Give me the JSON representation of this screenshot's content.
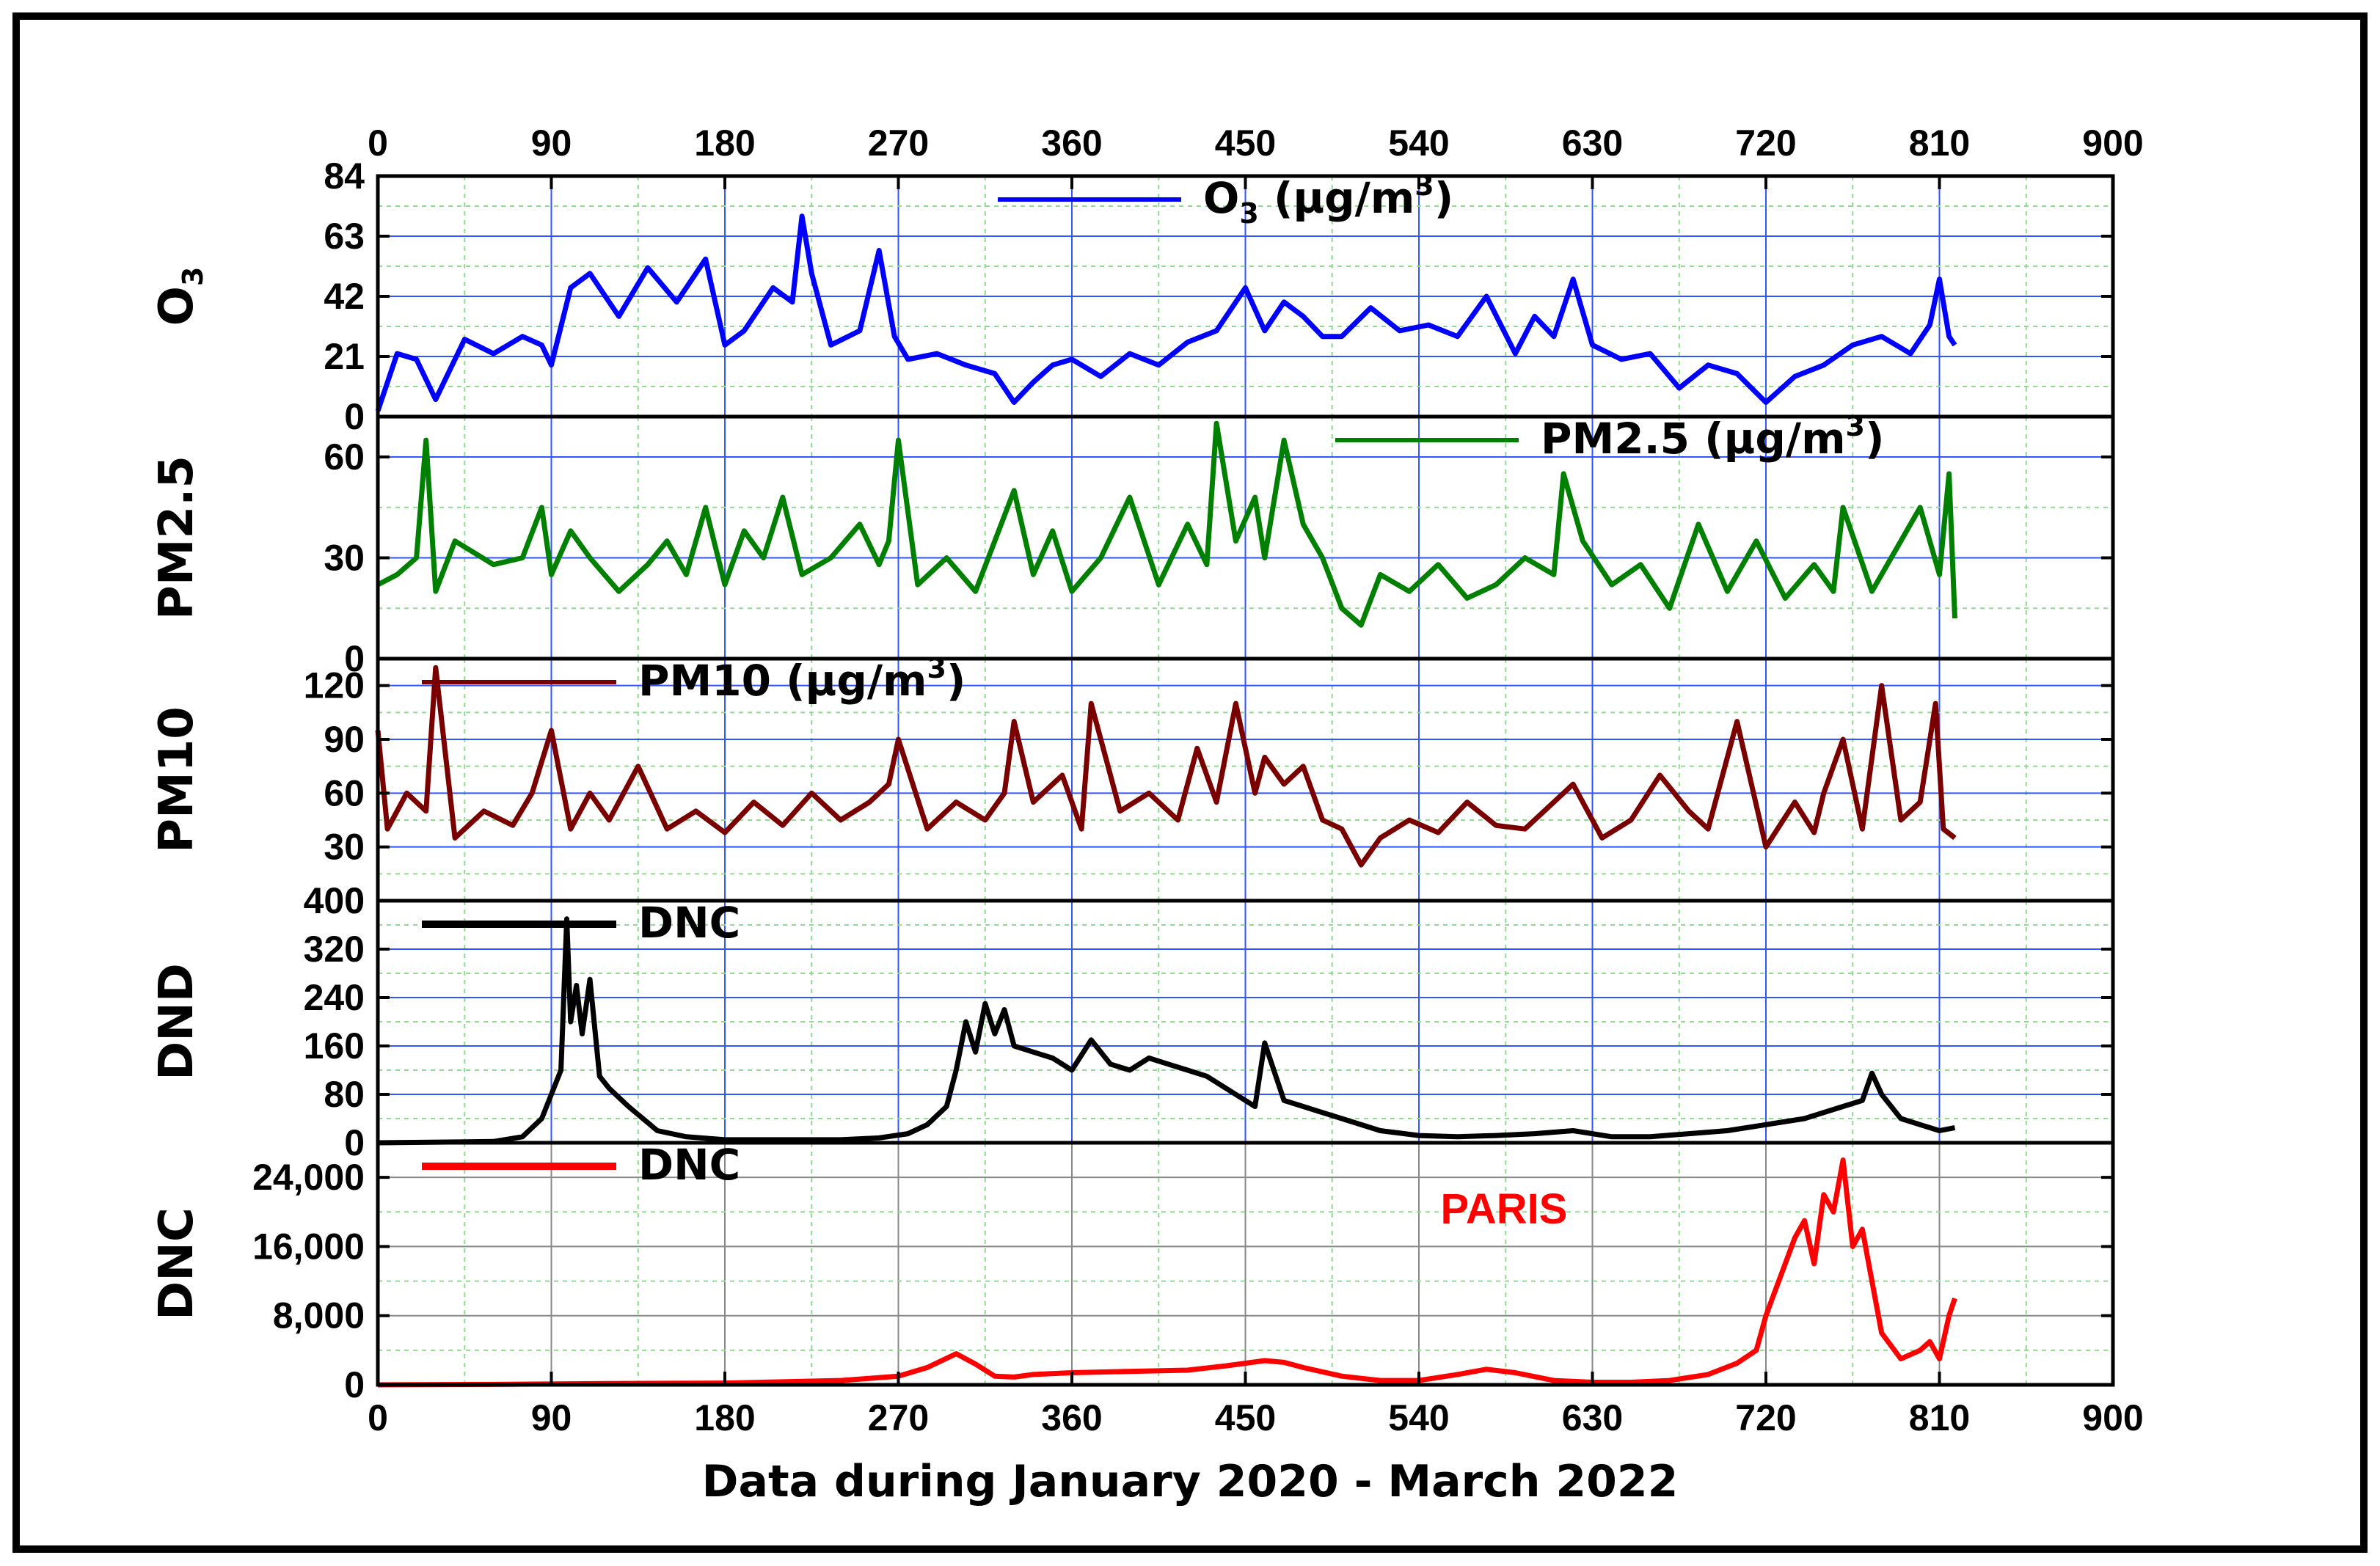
{
  "chart_data": {
    "type": "line",
    "xlabel": "Data during January 2020 - March 2022",
    "x_ticks": [
      "0",
      "90",
      "180",
      "270",
      "360",
      "450",
      "540",
      "630",
      "720",
      "810",
      "900"
    ],
    "xlim": [
      0,
      900
    ],
    "grid": true,
    "panels": [
      {
        "id": "o3",
        "ylabel": "O",
        "ylabel_sub": "3",
        "ylim": [
          0,
          84
        ],
        "y_ticks": [
          "0",
          "21",
          "42",
          "63",
          "84"
        ],
        "y_tick_values": [
          0,
          21,
          42,
          63,
          84
        ],
        "color": "#0000ff",
        "legend": {
          "main": "O",
          "sub": "3",
          "rest": " (µg/m",
          "sup": "3",
          "end": ")",
          "position": "top-center"
        },
        "series": {
          "name": "O3",
          "x": [
            0,
            10,
            20,
            30,
            45,
            60,
            75,
            85,
            90,
            100,
            110,
            125,
            140,
            155,
            170,
            180,
            190,
            205,
            215,
            220,
            225,
            235,
            250,
            260,
            268,
            275,
            290,
            305,
            320,
            330,
            340,
            350,
            360,
            375,
            390,
            405,
            420,
            435,
            450,
            460,
            470,
            480,
            490,
            500,
            515,
            530,
            545,
            560,
            575,
            590,
            600,
            610,
            620,
            630,
            645,
            660,
            675,
            690,
            705,
            720,
            735,
            750,
            765,
            780,
            795,
            805,
            810,
            815,
            818
          ],
          "y": [
            2,
            22,
            20,
            6,
            27,
            22,
            28,
            25,
            18,
            45,
            50,
            35,
            52,
            40,
            55,
            25,
            30,
            45,
            40,
            70,
            50,
            25,
            30,
            58,
            28,
            20,
            22,
            18,
            15,
            5,
            12,
            18,
            20,
            14,
            22,
            18,
            26,
            30,
            45,
            30,
            40,
            35,
            28,
            28,
            38,
            30,
            32,
            28,
            42,
            22,
            35,
            28,
            48,
            25,
            20,
            22,
            10,
            18,
            15,
            5,
            14,
            18,
            25,
            28,
            22,
            32,
            48,
            28,
            25
          ]
        }
      },
      {
        "id": "pm25",
        "ylabel": "PM2.5",
        "ylim": [
          0,
          72
        ],
        "y_ticks": [
          "0",
          "30",
          "60"
        ],
        "y_tick_values": [
          0,
          30,
          60
        ],
        "color": "#008000",
        "legend": {
          "main": "PM2.5",
          "rest": " (µg/m",
          "sup": "3",
          "end": ")",
          "position": "top-right"
        },
        "series": {
          "name": "PM2.5",
          "x": [
            0,
            10,
            20,
            25,
            30,
            40,
            60,
            75,
            85,
            90,
            100,
            110,
            125,
            140,
            150,
            160,
            170,
            180,
            190,
            200,
            210,
            220,
            235,
            250,
            260,
            265,
            270,
            280,
            295,
            310,
            320,
            330,
            340,
            350,
            360,
            375,
            390,
            405,
            420,
            430,
            435,
            445,
            455,
            460,
            470,
            480,
            490,
            500,
            510,
            520,
            535,
            550,
            565,
            580,
            595,
            610,
            615,
            625,
            640,
            655,
            670,
            685,
            700,
            715,
            730,
            745,
            755,
            760,
            775,
            790,
            800,
            810,
            815,
            818
          ],
          "y": [
            22,
            25,
            30,
            65,
            20,
            35,
            28,
            30,
            45,
            25,
            38,
            30,
            20,
            28,
            35,
            25,
            45,
            22,
            38,
            30,
            48,
            25,
            30,
            40,
            28,
            35,
            65,
            22,
            30,
            20,
            35,
            50,
            25,
            38,
            20,
            30,
            48,
            22,
            40,
            28,
            70,
            35,
            48,
            30,
            65,
            40,
            30,
            15,
            10,
            25,
            20,
            28,
            18,
            22,
            30,
            25,
            55,
            35,
            22,
            28,
            15,
            40,
            20,
            35,
            18,
            28,
            20,
            45,
            20,
            35,
            45,
            25,
            55,
            12
          ]
        }
      },
      {
        "id": "pm10",
        "ylabel": "PM10",
        "ylim": [
          0,
          135
        ],
        "y_ticks": [
          "0",
          "30",
          "60",
          "90",
          "120"
        ],
        "y_tick_values": [
          0,
          30,
          60,
          90,
          120
        ],
        "color": "#7a0000",
        "legend": {
          "main": "PM10",
          "rest": " (µg/m",
          "sup": "3",
          "end": ")",
          "position": "top-left"
        },
        "series": {
          "name": "PM10",
          "x": [
            0,
            5,
            15,
            25,
            30,
            40,
            55,
            70,
            80,
            90,
            100,
            110,
            120,
            135,
            150,
            165,
            180,
            195,
            210,
            225,
            240,
            255,
            265,
            270,
            285,
            300,
            315,
            325,
            330,
            340,
            355,
            365,
            370,
            385,
            400,
            415,
            425,
            435,
            445,
            455,
            460,
            470,
            480,
            490,
            500,
            510,
            520,
            535,
            550,
            565,
            580,
            595,
            610,
            620,
            635,
            650,
            665,
            680,
            690,
            705,
            720,
            735,
            745,
            750,
            760,
            770,
            780,
            790,
            800,
            808,
            812,
            818
          ],
          "y": [
            95,
            40,
            60,
            50,
            130,
            35,
            50,
            42,
            60,
            95,
            40,
            60,
            45,
            75,
            40,
            50,
            38,
            55,
            42,
            60,
            45,
            55,
            65,
            90,
            40,
            55,
            45,
            60,
            100,
            55,
            70,
            40,
            110,
            50,
            60,
            45,
            85,
            55,
            110,
            60,
            80,
            65,
            75,
            45,
            40,
            20,
            35,
            45,
            38,
            55,
            42,
            40,
            55,
            65,
            35,
            45,
            70,
            50,
            40,
            100,
            30,
            55,
            38,
            60,
            90,
            40,
            120,
            45,
            55,
            110,
            40,
            35
          ]
        }
      },
      {
        "id": "dnd",
        "ylabel": "DND",
        "ylim": [
          0,
          400
        ],
        "y_ticks": [
          "0",
          "80",
          "160",
          "240",
          "320",
          "400"
        ],
        "y_tick_values": [
          0,
          80,
          160,
          240,
          320,
          400
        ],
        "color": "#000000",
        "legend": {
          "main": "DNC",
          "position": "top-left"
        },
        "series": {
          "name": "DNC",
          "x": [
            0,
            60,
            75,
            85,
            90,
            95,
            98,
            100,
            103,
            106,
            110,
            115,
            120,
            130,
            145,
            160,
            180,
            200,
            220,
            240,
            260,
            275,
            285,
            295,
            300,
            305,
            310,
            315,
            320,
            325,
            330,
            340,
            350,
            360,
            370,
            380,
            390,
            400,
            410,
            420,
            430,
            440,
            450,
            455,
            460,
            470,
            480,
            490,
            500,
            520,
            540,
            560,
            580,
            600,
            620,
            640,
            660,
            680,
            700,
            720,
            740,
            760,
            770,
            775,
            780,
            790,
            800,
            810,
            818
          ],
          "y": [
            0,
            2,
            10,
            40,
            80,
            120,
            370,
            200,
            260,
            180,
            270,
            110,
            90,
            60,
            20,
            10,
            5,
            5,
            5,
            5,
            8,
            15,
            30,
            60,
            120,
            200,
            150,
            230,
            180,
            220,
            160,
            150,
            140,
            120,
            170,
            130,
            120,
            140,
            130,
            120,
            110,
            90,
            70,
            60,
            165,
            70,
            60,
            50,
            40,
            20,
            12,
            10,
            12,
            15,
            20,
            10,
            10,
            15,
            20,
            30,
            40,
            60,
            70,
            115,
            80,
            40,
            30,
            20,
            25
          ]
        }
      },
      {
        "id": "dnc",
        "ylabel": "DNC",
        "ylim": [
          0,
          28000
        ],
        "y_ticks": [
          "0",
          "8,000",
          "16,000",
          "24,000"
        ],
        "y_tick_values": [
          0,
          8000,
          16000,
          24000
        ],
        "color": "#ff0000",
        "legend": {
          "main": "DNC",
          "position": "top-left"
        },
        "annotation": "PARIS",
        "series": {
          "name": "DNC",
          "x": [
            0,
            60,
            120,
            180,
            240,
            270,
            285,
            300,
            310,
            320,
            330,
            340,
            360,
            380,
            400,
            420,
            440,
            460,
            470,
            480,
            500,
            520,
            540,
            560,
            575,
            590,
            610,
            630,
            650,
            670,
            690,
            705,
            715,
            720,
            725,
            730,
            735,
            740,
            745,
            750,
            755,
            760,
            765,
            770,
            775,
            780,
            790,
            800,
            805,
            810,
            815,
            818
          ],
          "y": [
            0,
            50,
            150,
            200,
            500,
            1000,
            2000,
            3600,
            2400,
            1000,
            900,
            1200,
            1400,
            1500,
            1600,
            1700,
            2200,
            2800,
            2600,
            2000,
            1000,
            500,
            500,
            1200,
            1800,
            1400,
            500,
            300,
            300,
            500,
            1200,
            2500,
            4000,
            8000,
            11000,
            14000,
            17000,
            19000,
            14000,
            22000,
            20000,
            26000,
            16000,
            18000,
            12000,
            6000,
            3000,
            4000,
            5000,
            3000,
            8000,
            10000
          ]
        }
      }
    ]
  }
}
